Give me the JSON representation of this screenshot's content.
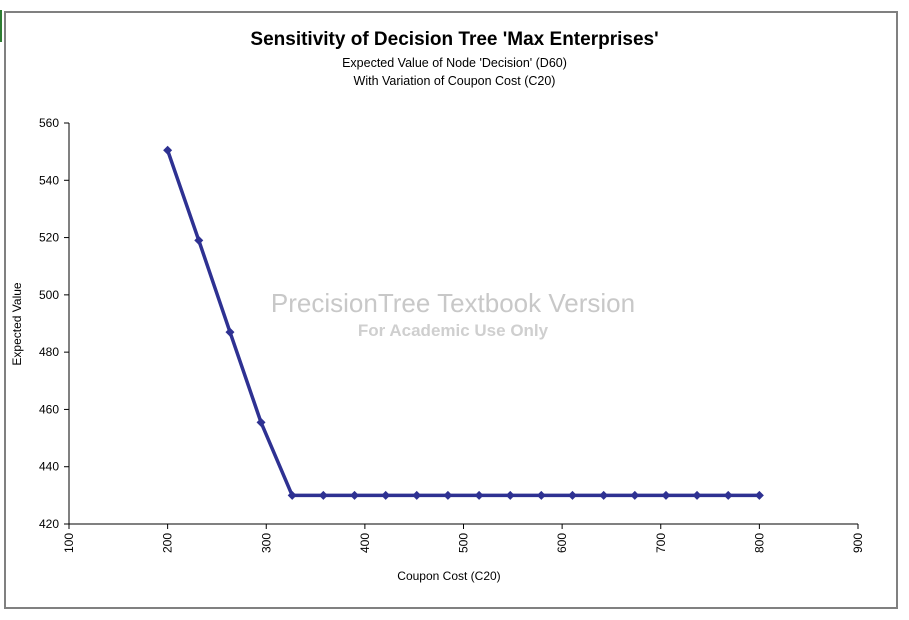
{
  "colors": {
    "series": "#2e3192",
    "axis": "#000000",
    "frame": "#808080",
    "watermark": "#c8c8c8"
  },
  "watermark": {
    "line1": "PrecisionTree Textbook Version",
    "line2": "For Academic Use Only"
  },
  "chart_data": {
    "type": "line",
    "title": "Sensitivity of Decision Tree 'Max Enterprises'",
    "subtitle": [
      "Expected Value of Node 'Decision' (D60)",
      "With Variation of Coupon Cost (C20)"
    ],
    "xlabel": "Coupon Cost (C20)",
    "ylabel": "Expected Value",
    "xlim": [
      100,
      900
    ],
    "ylim": [
      420,
      560
    ],
    "xticks": [
      100,
      200,
      300,
      400,
      500,
      600,
      700,
      800,
      900
    ],
    "yticks": [
      420,
      440,
      460,
      480,
      500,
      520,
      540,
      560
    ],
    "grid": false,
    "legend": "none",
    "marker": "diamond",
    "series": [
      {
        "x": [
          200,
          231.6,
          263.2,
          294.7,
          326.3,
          357.9,
          389.5,
          421.1,
          452.6,
          484.2,
          515.8,
          547.4,
          578.9,
          610.5,
          642.1,
          673.7,
          705.3,
          736.8,
          768.4,
          800
        ],
        "y": [
          550.5,
          519,
          487,
          455.5,
          430,
          430,
          430,
          430,
          430,
          430,
          430,
          430,
          430,
          430,
          430,
          430,
          430,
          430,
          430,
          430
        ]
      }
    ]
  }
}
